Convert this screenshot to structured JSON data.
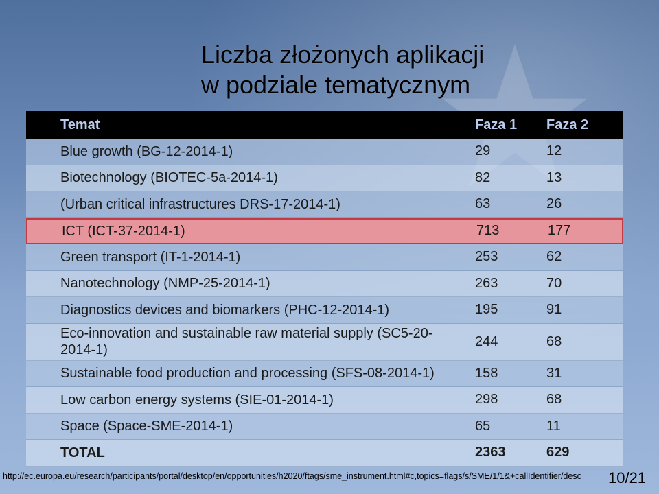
{
  "title": {
    "line1": "Liczba złożonych aplikacji",
    "line2": "w podziale tematycznym"
  },
  "table": {
    "headers": {
      "topic": "Temat",
      "phase1": "Faza 1",
      "phase2": "Faza 2"
    },
    "rows": [
      {
        "topic": "Blue growth (BG-12-2014-1)",
        "phase1": "29",
        "phase2": "12"
      },
      {
        "topic": "Biotechnology (BIOTEC-5a-2014-1)",
        "phase1": "82",
        "phase2": "13"
      },
      {
        "topic": "(Urban critical infrastructures DRS-17-2014-1)",
        "phase1": "63",
        "phase2": "26"
      },
      {
        "topic": "ICT (ICT-37-2014-1)",
        "phase1": "713",
        "phase2": "177",
        "highlighted": true
      },
      {
        "topic": "Green transport (IT-1-2014-1)",
        "phase1": "253",
        "phase2": "62"
      },
      {
        "topic": "Nanotechnology (NMP-25-2014-1)",
        "phase1": "263",
        "phase2": "70"
      },
      {
        "topic": "Diagnostics devices and biomarkers (PHC-12-2014-1)",
        "phase1": "195",
        "phase2": "91"
      },
      {
        "topic": "Eco-innovation and sustainable raw material supply (SC5-20-2014-1)",
        "phase1": "244",
        "phase2": "68"
      },
      {
        "topic": "Sustainable food production and processing (SFS-08-2014-1)",
        "phase1": "158",
        "phase2": "31"
      },
      {
        "topic": "Low carbon energy systems (SIE-01-2014-1)",
        "phase1": "298",
        "phase2": "68"
      },
      {
        "topic": "Space (Space-SME-2014-1)",
        "phase1": "65",
        "phase2": "11"
      }
    ],
    "total": {
      "topic": "TOTAL",
      "phase1": "2363",
      "phase2": "629"
    }
  },
  "footer": {
    "url": "http://ec.europa.eu/research/participants/portal/desktop/en/opportunities/h2020/ftags/sme_instrument.html#c,topics=flags/s/SME/1/1&+callIdentifier/desc",
    "page": "10/21"
  },
  "colors": {
    "header_bg": "#000000",
    "header_text": "#b9cbf0",
    "highlight_fill": "#e6959d",
    "highlight_border": "#c23a44"
  }
}
